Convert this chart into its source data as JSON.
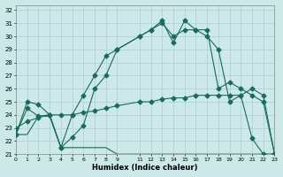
{
  "xlabel": "Humidex (Indice chaleur)",
  "bg_color": "#cce8e8",
  "grid_color": "#aacfcf",
  "line_color": "#1a6b5a",
  "xlim": [
    0,
    23
  ],
  "ylim": [
    21,
    32.4
  ],
  "xticks": [
    0,
    1,
    2,
    3,
    4,
    5,
    6,
    7,
    8,
    9,
    11,
    12,
    13,
    14,
    15,
    16,
    17,
    18,
    19,
    20,
    21,
    22,
    23
  ],
  "yticks": [
    21,
    22,
    23,
    24,
    25,
    26,
    27,
    28,
    29,
    30,
    31,
    32
  ],
  "curve1_x": [
    0,
    1,
    2,
    3,
    4,
    5,
    6,
    7,
    8,
    9,
    11,
    12,
    13,
    14,
    15,
    16,
    17,
    18,
    19,
    20,
    21,
    22,
    23
  ],
  "curve1_y": [
    22.5,
    25.0,
    24.8,
    24.0,
    21.5,
    22.3,
    23.2,
    26.0,
    27.0,
    29.0,
    30.0,
    30.5,
    31.2,
    29.5,
    31.2,
    30.5,
    30.0,
    29.0,
    25.0,
    25.5,
    22.2,
    21.0,
    21.0
  ],
  "curve2_x": [
    0,
    1,
    2,
    3,
    4,
    5,
    6,
    7,
    8,
    9,
    11,
    12,
    13,
    14,
    15,
    16,
    17,
    18,
    19,
    20,
    21,
    22,
    23
  ],
  "curve2_y": [
    22.5,
    24.5,
    23.9,
    24.0,
    21.5,
    24.0,
    25.5,
    27.0,
    28.5,
    29.0,
    30.0,
    30.5,
    31.0,
    30.0,
    30.5,
    30.5,
    30.5,
    26.0,
    26.5,
    26.0,
    25.5,
    25.0,
    21.0
  ],
  "curve3_x": [
    0,
    1,
    2,
    3,
    4,
    5,
    6,
    7,
    8,
    9,
    10,
    11,
    12,
    13,
    14,
    15,
    16,
    17,
    18,
    19,
    20,
    21,
    22,
    23
  ],
  "curve3_y": [
    22.5,
    22.5,
    23.9,
    23.9,
    21.5,
    21.5,
    21.5,
    21.5,
    21.5,
    21.0,
    21.0,
    21.0,
    21.0,
    21.0,
    21.0,
    21.0,
    21.0,
    21.0,
    21.0,
    21.0,
    21.0,
    21.0,
    21.0,
    21.0
  ],
  "curve4_x": [
    0,
    1,
    2,
    3,
    4,
    5,
    6,
    7,
    8,
    9,
    11,
    12,
    13,
    14,
    15,
    16,
    17,
    18,
    19,
    20,
    21,
    22,
    23
  ],
  "curve4_y": [
    23.0,
    23.5,
    23.8,
    24.0,
    24.0,
    24.0,
    24.2,
    24.3,
    24.5,
    24.7,
    25.0,
    25.0,
    25.2,
    25.3,
    25.3,
    25.5,
    25.5,
    25.5,
    25.5,
    25.5,
    26.0,
    25.5,
    21.0
  ]
}
